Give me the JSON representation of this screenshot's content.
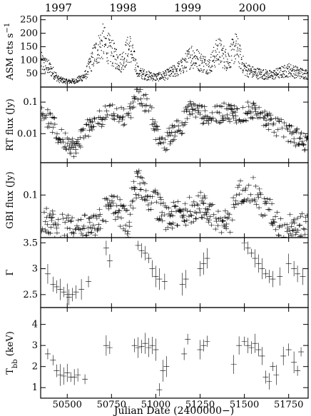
{
  "chart_data": {
    "type": "scatter",
    "xlabel": "Julian Date (2400000−)",
    "xlim": [
      50350,
      51860
    ],
    "x_ticks": [
      50500,
      50750,
      51000,
      51250,
      51500,
      51750
    ],
    "top_axis_years": [
      {
        "label": "1997",
        "jd": 50450
      },
      {
        "label": "1998",
        "jd": 50815
      },
      {
        "label": "1999",
        "jd": 51180
      },
      {
        "label": "2000",
        "jd": 51545
      }
    ],
    "panels": [
      {
        "id": "asm",
        "ylabel_main": "ASM cts s",
        "ylabel_sup": "−1",
        "ylim": [
          0,
          265
        ],
        "yscale": "linear",
        "ticks": [
          {
            "v": 50,
            "label": "50"
          },
          {
            "v": 100,
            "label": "100"
          },
          {
            "v": 150,
            "label": "150"
          },
          {
            "v": 200,
            "label": "200"
          },
          {
            "v": 250,
            "label": "250"
          }
        ],
        "style": "dots",
        "series": [
          {
            "profile": [
              [
                50350,
                95
              ],
              [
                50400,
                70
              ],
              [
                50450,
                30
              ],
              [
                50500,
                22
              ],
              [
                50550,
                25
              ],
              [
                50600,
                45
              ],
              [
                50650,
                120
              ],
              [
                50700,
                170
              ],
              [
                50750,
                130
              ],
              [
                50800,
                90
              ],
              [
                50850,
                150
              ],
              [
                50900,
                55
              ],
              [
                50950,
                45
              ],
              [
                51000,
                38
              ],
              [
                51050,
                45
              ],
              [
                51100,
                60
              ],
              [
                51150,
                80
              ],
              [
                51200,
                120
              ],
              [
                51250,
                95
              ],
              [
                51300,
                80
              ],
              [
                51350,
                140
              ],
              [
                51400,
                100
              ],
              [
                51450,
                150
              ],
              [
                51500,
                70
              ],
              [
                51550,
                55
              ],
              [
                51600,
                50
              ],
              [
                51650,
                45
              ],
              [
                51700,
                55
              ],
              [
                51750,
                65
              ],
              [
                51800,
                55
              ],
              [
                51850,
                50
              ]
            ]
          }
        ]
      },
      {
        "id": "rt",
        "ylabel_main": "RT flux (Jy)",
        "ylim": [
          0.0012,
          0.3
        ],
        "yscale": "log",
        "ticks": [
          {
            "v": 0.1,
            "label": "0.1"
          },
          {
            "v": 0.01,
            "label": "0.01"
          }
        ],
        "style": "cross",
        "series": [
          {
            "profile": [
              [
                50360,
                0.04
              ],
              [
                50450,
                0.008
              ],
              [
                50550,
                0.003
              ],
              [
                50650,
                0.02
              ],
              [
                50750,
                0.05
              ],
              [
                50850,
                0.03
              ],
              [
                50900,
                0.15
              ],
              [
                50950,
                0.08
              ],
              [
                51000,
                0.01
              ],
              [
                51050,
                0.004
              ],
              [
                51150,
                0.02
              ],
              [
                51200,
                0.06
              ],
              [
                51300,
                0.03
              ],
              [
                51400,
                0.05
              ],
              [
                51480,
                0.04
              ],
              [
                51550,
                0.06
              ],
              [
                51650,
                0.02
              ],
              [
                51750,
                0.01
              ],
              [
                51850,
                0.005
              ]
            ]
          }
        ]
      },
      {
        "id": "gbi",
        "ylabel_main": "GBI flux (Jy)",
        "ylim": [
          0.012,
          0.5
        ],
        "yscale": "log",
        "ticks": [
          {
            "v": 0.1,
            "label": "0.1"
          }
        ],
        "style": "cross",
        "series": [
          {
            "profile": [
              [
                50360,
                0.03
              ],
              [
                50450,
                0.02
              ],
              [
                50550,
                0.018
              ],
              [
                50650,
                0.02
              ],
              [
                50750,
                0.06
              ],
              [
                50850,
                0.02
              ],
              [
                50900,
                0.2
              ],
              [
                50950,
                0.1
              ],
              [
                51050,
                0.03
              ],
              [
                51150,
                0.04
              ],
              [
                51250,
                0.06
              ],
              [
                51350,
                0.03
              ],
              [
                51420,
                0.02
              ],
              [
                51500,
                0.15
              ],
              [
                51550,
                0.12
              ],
              [
                51600,
                0.06
              ],
              [
                51700,
                0.02
              ],
              [
                51850,
                0.02
              ]
            ]
          }
        ]
      },
      {
        "id": "gamma",
        "ylabel_main": "Γ",
        "ylim": [
          2.25,
          3.6
        ],
        "yscale": "linear",
        "ticks": [
          {
            "v": 2.5,
            "label": "2.5"
          },
          {
            "v": 3,
            "label": "3"
          },
          {
            "v": 3.5,
            "label": "3.5"
          }
        ],
        "style": "cross_err",
        "series": [
          {
            "points": [
              [
                50390,
                2.9
              ],
              [
                50420,
                2.7
              ],
              [
                50440,
                2.65
              ],
              [
                50460,
                2.6
              ],
              [
                50480,
                2.55
              ],
              [
                50500,
                2.5
              ],
              [
                50510,
                2.45
              ],
              [
                50530,
                2.5
              ],
              [
                50550,
                2.55
              ],
              [
                50580,
                2.6
              ],
              [
                50620,
                2.75
              ],
              [
                50720,
                3.4
              ],
              [
                50740,
                3.15
              ],
              [
                50900,
                3.45
              ],
              [
                50920,
                3.35
              ],
              [
                50940,
                3.3
              ],
              [
                50960,
                3.2
              ],
              [
                50980,
                3.0
              ],
              [
                51000,
                2.85
              ],
              [
                51020,
                2.8
              ],
              [
                51050,
                2.75
              ],
              [
                51150,
                2.7
              ],
              [
                51170,
                2.8
              ],
              [
                51250,
                3.0
              ],
              [
                51270,
                3.1
              ],
              [
                51290,
                3.2
              ],
              [
                51500,
                3.5
              ],
              [
                51520,
                3.4
              ],
              [
                51540,
                3.3
              ],
              [
                51560,
                3.2
              ],
              [
                51580,
                3.1
              ],
              [
                51600,
                3.0
              ],
              [
                51620,
                2.9
              ],
              [
                51640,
                2.85
              ],
              [
                51660,
                2.8
              ],
              [
                51700,
                2.85
              ],
              [
                51750,
                3.1
              ],
              [
                51780,
                3.0
              ],
              [
                51800,
                2.9
              ],
              [
                51830,
                2.85
              ]
            ]
          }
        ]
      },
      {
        "id": "tbb",
        "ylabel_main": "T",
        "ylabel_sub": "bb",
        "ylabel_suffix": " (keV)",
        "ylim": [
          0.5,
          4.8
        ],
        "yscale": "linear",
        "ticks": [
          {
            "v": 1,
            "label": "1"
          },
          {
            "v": 2,
            "label": "2"
          },
          {
            "v": 3,
            "label": "3"
          },
          {
            "v": 4,
            "label": "4"
          }
        ],
        "style": "cross_err",
        "series": [
          {
            "points": [
              [
                50390,
                2.6
              ],
              [
                50420,
                2.3
              ],
              [
                50440,
                1.8
              ],
              [
                50460,
                1.6
              ],
              [
                50480,
                1.55
              ],
              [
                50500,
                1.7
              ],
              [
                50520,
                1.5
              ],
              [
                50540,
                1.5
              ],
              [
                50560,
                1.6
              ],
              [
                50600,
                1.4
              ],
              [
                50720,
                3.0
              ],
              [
                50740,
                2.9
              ],
              [
                50880,
                3.0
              ],
              [
                50900,
                2.9
              ],
              [
                50920,
                2.95
              ],
              [
                50940,
                3.1
              ],
              [
                50960,
                2.9
              ],
              [
                50980,
                3.0
              ],
              [
                51000,
                2.8
              ],
              [
                51020,
                0.9
              ],
              [
                51040,
                1.8
              ],
              [
                51060,
                2.0
              ],
              [
                51160,
                2.6
              ],
              [
                51180,
                3.3
              ],
              [
                51250,
                2.8
              ],
              [
                51270,
                3.0
              ],
              [
                51290,
                3.2
              ],
              [
                51440,
                2.1
              ],
              [
                51470,
                3.0
              ],
              [
                51500,
                3.2
              ],
              [
                51520,
                3.0
              ],
              [
                51540,
                2.9
              ],
              [
                51560,
                3.1
              ],
              [
                51580,
                2.8
              ],
              [
                51600,
                2.5
              ],
              [
                51620,
                1.5
              ],
              [
                51640,
                1.3
              ],
              [
                51660,
                2.0
              ],
              [
                51680,
                1.6
              ],
              [
                51720,
                2.5
              ],
              [
                51750,
                2.8
              ],
              [
                51780,
                2.2
              ],
              [
                51800,
                1.8
              ],
              [
                51820,
                2.7
              ]
            ]
          }
        ]
      }
    ]
  }
}
